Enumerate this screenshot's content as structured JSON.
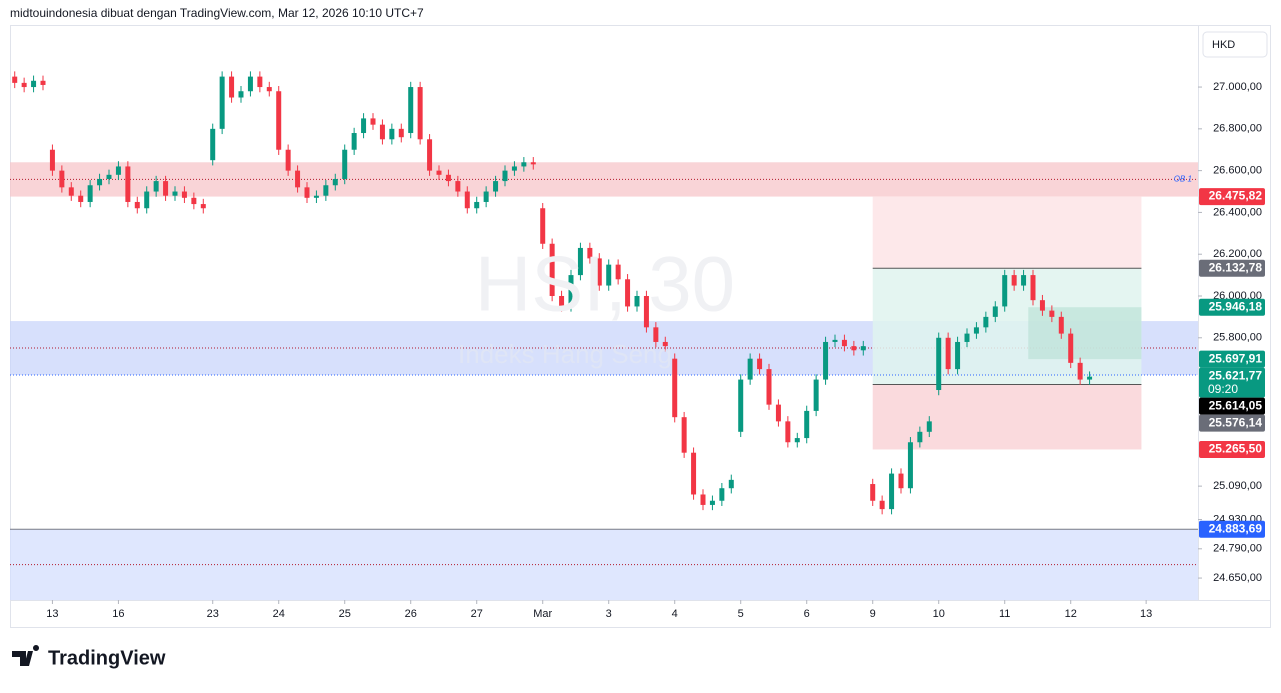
{
  "header": "midtouindonesia dibuat dengan TradingView.com, Mar 12, 2026 10:10 UTC+7",
  "footer": "TradingView",
  "chart_data": {
    "type": "candlestick",
    "symbol": "HSI, 30",
    "subtitle": "Indeks Hang Seng",
    "currency": "HKD",
    "up_color": "#089981",
    "down_color": "#f23645",
    "x": [
      0,
      1,
      2,
      3,
      4,
      5,
      6,
      7,
      8,
      9,
      10,
      11,
      12,
      13,
      14,
      15,
      16,
      17,
      18,
      19,
      20,
      21,
      22,
      23,
      24,
      25,
      26,
      27,
      28,
      29,
      30,
      31,
      32,
      33,
      34,
      35,
      36,
      37,
      38,
      39,
      40,
      41,
      42,
      43,
      44,
      45,
      46,
      47,
      48,
      49,
      50,
      51,
      52,
      53,
      54,
      55,
      56,
      57,
      58,
      59,
      60,
      61,
      62,
      63,
      64,
      65,
      66,
      67,
      68,
      69,
      70,
      71,
      72,
      73,
      74,
      75,
      76,
      77,
      78,
      79,
      80,
      81,
      82,
      83,
      84,
      85,
      86,
      87,
      88,
      89,
      90,
      91,
      92,
      93,
      94,
      95,
      96,
      97,
      98,
      99,
      100,
      101,
      102,
      103,
      104,
      105,
      106,
      107,
      108,
      109,
      110,
      111,
      112,
      113,
      114
    ],
    "open": [
      27050,
      27020,
      27000,
      27030,
      26700,
      26600,
      26520,
      26480,
      26450,
      26530,
      26560,
      26580,
      26620,
      26450,
      26420,
      26500,
      26550,
      26480,
      26500,
      26470,
      26440,
      26650,
      26800,
      27050,
      26950,
      26980,
      27050,
      27000,
      26980,
      26700,
      26600,
      26520,
      26470,
      26480,
      26530,
      26560,
      26700,
      26780,
      26850,
      26820,
      26750,
      26800,
      26780,
      27000,
      26750,
      26600,
      26580,
      26550,
      26500,
      26420,
      26450,
      26500,
      26550,
      26600,
      26620,
      26640,
      26420,
      26250,
      26000,
      25950,
      26100,
      26230,
      26180,
      26050,
      26150,
      26080,
      25950,
      26000,
      25850,
      25780,
      25700,
      25420,
      25250,
      25050,
      25000,
      25020,
      25080,
      25350,
      25600,
      25700,
      25650,
      25480,
      25400,
      25300,
      25320,
      25450,
      25600,
      25780,
      25790,
      25760,
      25740,
      25100,
      25020,
      24980,
      25150,
      25080,
      25300,
      25350,
      25550,
      25800,
      25650,
      25780,
      25820,
      25850,
      25900,
      25950,
      26100,
      26050,
      26100,
      25980,
      25930,
      25900,
      25820,
      25680,
      25600
    ],
    "high": [
      27075,
      27045,
      27055,
      27055,
      26725,
      26625,
      26545,
      26505,
      26555,
      26585,
      26605,
      26645,
      26645,
      26475,
      26525,
      26575,
      26575,
      26525,
      26525,
      26495,
      26465,
      26825,
      27075,
      27075,
      27005,
      27075,
      27075,
      27025,
      27005,
      26725,
      26625,
      26545,
      26505,
      26555,
      26585,
      26725,
      26805,
      26875,
      26875,
      26845,
      26825,
      26825,
      27025,
      27025,
      26775,
      26625,
      26605,
      26575,
      26525,
      26475,
      26525,
      26575,
      26625,
      26645,
      26665,
      26665,
      26445,
      26275,
      26025,
      26125,
      26255,
      26255,
      26205,
      26175,
      26175,
      26105,
      26025,
      26025,
      25875,
      25805,
      25725,
      25445,
      25275,
      25075,
      25045,
      25105,
      25145,
      25625,
      25725,
      25725,
      25675,
      25505,
      25425,
      25345,
      25475,
      25625,
      25805,
      25815,
      25815,
      25785,
      25785,
      25125,
      25045,
      25175,
      25175,
      25325,
      25375,
      25425,
      25825,
      25825,
      25805,
      25845,
      25875,
      25925,
      25975,
      26125,
      26125,
      26125,
      26125,
      26005,
      25955,
      25925,
      25845,
      25705,
      25639
    ],
    "low": [
      26995,
      26975,
      26975,
      26985,
      26575,
      26495,
      26455,
      26425,
      26425,
      26505,
      26535,
      26555,
      26425,
      26395,
      26395,
      26475,
      26455,
      26455,
      26445,
      26415,
      26395,
      26625,
      26775,
      26925,
      26925,
      26955,
      26975,
      26955,
      26675,
      26575,
      26495,
      26445,
      26445,
      26455,
      26505,
      26535,
      26675,
      26755,
      26795,
      26725,
      26725,
      26735,
      26755,
      26725,
      26575,
      26555,
      26525,
      26475,
      26395,
      26395,
      26425,
      26475,
      26525,
      26575,
      26595,
      26605,
      26225,
      25975,
      25925,
      25925,
      26075,
      26155,
      26025,
      26025,
      26055,
      25925,
      25925,
      25825,
      25755,
      25735,
      25395,
      25225,
      25025,
      24975,
      24975,
      24995,
      25055,
      25325,
      25575,
      25625,
      25455,
      25375,
      25275,
      25275,
      25295,
      25425,
      25575,
      25755,
      25735,
      25715,
      25715,
      24995,
      24955,
      24955,
      25055,
      25055,
      25275,
      25325,
      25525,
      25625,
      25625,
      25755,
      25795,
      25825,
      25875,
      25925,
      26025,
      26025,
      25955,
      25905,
      25875,
      25795,
      25655,
      25575,
      25575
    ],
    "close": [
      27020,
      27000,
      27030,
      27010,
      26600,
      26520,
      26480,
      26450,
      26530,
      26560,
      26580,
      26620,
      26450,
      26420,
      26500,
      26550,
      26480,
      26500,
      26470,
      26440,
      26420,
      26800,
      27050,
      26950,
      26980,
      27050,
      27000,
      26980,
      26700,
      26600,
      26520,
      26470,
      26480,
      26530,
      26560,
      26700,
      26780,
      26850,
      26820,
      26750,
      26800,
      26760,
      27000,
      26750,
      26600,
      26580,
      26550,
      26500,
      26420,
      26450,
      26500,
      26550,
      26600,
      26620,
      26640,
      26630,
      26250,
      26000,
      25950,
      26100,
      26230,
      26180,
      26050,
      26150,
      26080,
      25950,
      26000,
      25850,
      25780,
      25760,
      25420,
      25250,
      25050,
      25000,
      25020,
      25080,
      25120,
      25600,
      25700,
      25650,
      25480,
      25400,
      25300,
      25320,
      25450,
      25600,
      25780,
      25790,
      25760,
      25740,
      25760,
      25020,
      24980,
      25150,
      25080,
      25300,
      25350,
      25400,
      25800,
      25650,
      25780,
      25820,
      25850,
      25900,
      25950,
      26100,
      26050,
      26100,
      25980,
      25930,
      25900,
      25820,
      25680,
      25600,
      25614.05
    ],
    "xlim": [
      -0.5,
      125.5
    ],
    "xticks": [
      {
        "value": 4,
        "label": "13"
      },
      {
        "value": 11,
        "label": "16"
      },
      {
        "value": 21,
        "label": "23"
      },
      {
        "value": 28,
        "label": "24"
      },
      {
        "value": 35,
        "label": "25"
      },
      {
        "value": 42,
        "label": "26"
      },
      {
        "value": 49,
        "label": "27"
      },
      {
        "value": 56,
        "label": "Mar"
      },
      {
        "value": 63,
        "label": "3"
      },
      {
        "value": 70,
        "label": "4"
      },
      {
        "value": 77,
        "label": "5"
      },
      {
        "value": 84,
        "label": "6"
      },
      {
        "value": 91,
        "label": "9"
      },
      {
        "value": 98,
        "label": "10"
      },
      {
        "value": 105,
        "label": "11"
      },
      {
        "value": 112,
        "label": "12"
      },
      {
        "value": 120,
        "label": "13"
      }
    ],
    "ylim": [
      24545,
      27297
    ],
    "yticks": [
      {
        "value": 27000,
        "label": "27.000,00"
      },
      {
        "value": 26800,
        "label": "26.800,00"
      },
      {
        "value": 26600,
        "label": "26.600,00"
      },
      {
        "value": 26400,
        "label": "26.400,00"
      },
      {
        "value": 26200,
        "label": "26.200,00"
      },
      {
        "value": 26000,
        "label": "26.000,00"
      },
      {
        "value": 25800,
        "label": "25.800,00"
      },
      {
        "value": 25090,
        "label": "25.090,00"
      },
      {
        "value": 24930,
        "label": "24.930,00"
      },
      {
        "value": 24790,
        "label": "24.790,00"
      },
      {
        "value": 24650,
        "label": "24.650,00"
      }
    ],
    "zones": [
      {
        "label": "OB 1",
        "from": 26475.82,
        "to": 26640,
        "color": "#f7c5c9"
      },
      {
        "from": 25621.77,
        "to": 25880,
        "color": "#c9d6fb"
      },
      {
        "from": 24545,
        "to": 24883.69,
        "color": "#d4dffd"
      }
    ],
    "position": {
      "start": 91,
      "end": 119.5,
      "levels": [
        26475.82,
        26132.78,
        25576.14,
        25265.5
      ],
      "colors": [
        "#fde4e6",
        "#dff3ee",
        "#f9d3d7"
      ],
      "inner": {
        "start": 107.5,
        "top": 25946.18,
        "bottom": 25697.91
      }
    },
    "price_labels": [
      {
        "value": 26475.82,
        "label": "26.475,82",
        "color": "#f23645"
      },
      {
        "value": 26132.78,
        "label": "26.132,78",
        "color": "#6a6d78"
      },
      {
        "value": 25946.18,
        "label": "25.946,18",
        "color": "#089981"
      },
      {
        "value": 25697.91,
        "label": "25.697,91",
        "color": "#089981"
      },
      {
        "value": 25621.77,
        "label": "25.621,77",
        "color": "#089981",
        "countdown": "09:20"
      },
      {
        "value": 25614.05,
        "label": "25.614,05",
        "color": "#000000"
      },
      {
        "value": 25576.14,
        "label": "25.576,14",
        "color": "#6a6d78"
      },
      {
        "value": 25265.5,
        "label": "25.265,50",
        "color": "#f23645"
      },
      {
        "value": 24883.69,
        "label": "24.883,69",
        "color": "#2962ff"
      }
    ]
  }
}
